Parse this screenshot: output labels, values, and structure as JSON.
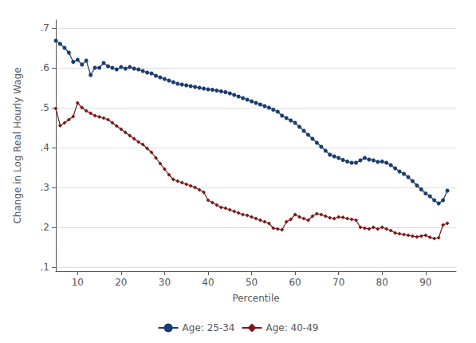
{
  "chart_data": {
    "type": "line",
    "xlabel": "Percentile",
    "ylabel": "Change in Log Real Hourly Wage",
    "xlim": [
      5,
      97
    ],
    "ylim": [
      0.09,
      0.72
    ],
    "xticks": [
      10,
      20,
      30,
      40,
      50,
      60,
      70,
      80,
      90
    ],
    "yticks": [
      {
        "value": 0.1,
        "label": ".1"
      },
      {
        "value": 0.2,
        "label": ".2"
      },
      {
        "value": 0.3,
        "label": ".3"
      },
      {
        "value": 0.4,
        "label": ".4"
      },
      {
        "value": 0.5,
        "label": ".5"
      },
      {
        "value": 0.6,
        "label": ".6"
      },
      {
        "value": 0.7,
        "label": ".7"
      }
    ],
    "grid": true,
    "legend": "bottom",
    "x": [
      5,
      6,
      7,
      8,
      9,
      10,
      11,
      12,
      13,
      14,
      15,
      16,
      17,
      18,
      19,
      20,
      21,
      22,
      23,
      24,
      25,
      26,
      27,
      28,
      29,
      30,
      31,
      32,
      33,
      34,
      35,
      36,
      37,
      38,
      39,
      40,
      41,
      42,
      43,
      44,
      45,
      46,
      47,
      48,
      49,
      50,
      51,
      52,
      53,
      54,
      55,
      56,
      57,
      58,
      59,
      60,
      61,
      62,
      63,
      64,
      65,
      66,
      67,
      68,
      69,
      70,
      71,
      72,
      73,
      74,
      75,
      76,
      77,
      78,
      79,
      80,
      81,
      82,
      83,
      84,
      85,
      86,
      87,
      88,
      89,
      90,
      91,
      92,
      93,
      94,
      95
    ],
    "series": [
      {
        "name": "Age: 25-34",
        "color": "#1a3d6e",
        "marker": "circle",
        "values": [
          0.668,
          0.66,
          0.65,
          0.638,
          0.615,
          0.62,
          0.608,
          0.618,
          0.582,
          0.6,
          0.6,
          0.612,
          0.604,
          0.6,
          0.596,
          0.602,
          0.598,
          0.602,
          0.598,
          0.596,
          0.592,
          0.588,
          0.586,
          0.58,
          0.576,
          0.572,
          0.568,
          0.564,
          0.56,
          0.558,
          0.556,
          0.554,
          0.552,
          0.55,
          0.548,
          0.546,
          0.545,
          0.543,
          0.541,
          0.539,
          0.536,
          0.532,
          0.528,
          0.524,
          0.52,
          0.516,
          0.512,
          0.508,
          0.504,
          0.5,
          0.495,
          0.49,
          0.48,
          0.474,
          0.468,
          0.462,
          0.452,
          0.442,
          0.432,
          0.422,
          0.412,
          0.402,
          0.392,
          0.382,
          0.378,
          0.374,
          0.369,
          0.365,
          0.362,
          0.362,
          0.368,
          0.374,
          0.37,
          0.368,
          0.364,
          0.365,
          0.362,
          0.356,
          0.348,
          0.34,
          0.334,
          0.326,
          0.316,
          0.305,
          0.295,
          0.285,
          0.278,
          0.268,
          0.26,
          0.268,
          0.292
        ]
      },
      {
        "name": "Age: 40-49",
        "color": "#7a1a1a",
        "marker": "diamond",
        "values": [
          0.498,
          0.455,
          0.462,
          0.47,
          0.478,
          0.512,
          0.5,
          0.492,
          0.486,
          0.48,
          0.477,
          0.474,
          0.47,
          0.462,
          0.454,
          0.446,
          0.438,
          0.43,
          0.422,
          0.414,
          0.408,
          0.398,
          0.388,
          0.374,
          0.36,
          0.346,
          0.332,
          0.32,
          0.316,
          0.312,
          0.308,
          0.304,
          0.3,
          0.294,
          0.288,
          0.268,
          0.262,
          0.256,
          0.25,
          0.248,
          0.244,
          0.24,
          0.236,
          0.232,
          0.23,
          0.226,
          0.222,
          0.218,
          0.214,
          0.21,
          0.198,
          0.196,
          0.194,
          0.214,
          0.22,
          0.232,
          0.226,
          0.222,
          0.218,
          0.228,
          0.234,
          0.232,
          0.228,
          0.224,
          0.222,
          0.226,
          0.225,
          0.222,
          0.22,
          0.218,
          0.2,
          0.198,
          0.196,
          0.2,
          0.196,
          0.2,
          0.196,
          0.192,
          0.186,
          0.184,
          0.182,
          0.18,
          0.178,
          0.176,
          0.178,
          0.18,
          0.175,
          0.172,
          0.174,
          0.206,
          0.21
        ]
      }
    ]
  }
}
